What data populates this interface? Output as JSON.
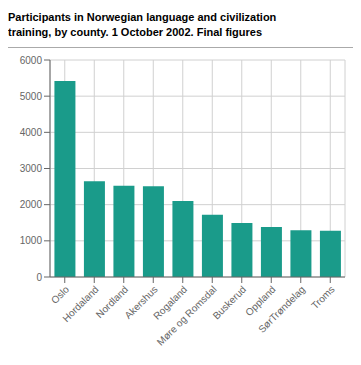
{
  "chart_data": {
    "type": "bar",
    "title": "Participants in Norwegian language and civilization\ntraining, by county. 1 October 2002. Final figures",
    "categories": [
      "Oslo",
      "Hordaland",
      "Nordland",
      "Akershus",
      "Rogaland",
      "Møre og Romsdal",
      "Buskerud",
      "Oppland",
      "SørTrøndelag",
      "Troms"
    ],
    "values": [
      5420,
      2650,
      2520,
      2510,
      2100,
      1720,
      1490,
      1380,
      1290,
      1280
    ],
    "color": "#1a9b8a",
    "ylim": [
      0,
      6000
    ],
    "yticks": [
      0,
      1000,
      2000,
      3000,
      4000,
      5000,
      6000
    ],
    "grid": true
  }
}
